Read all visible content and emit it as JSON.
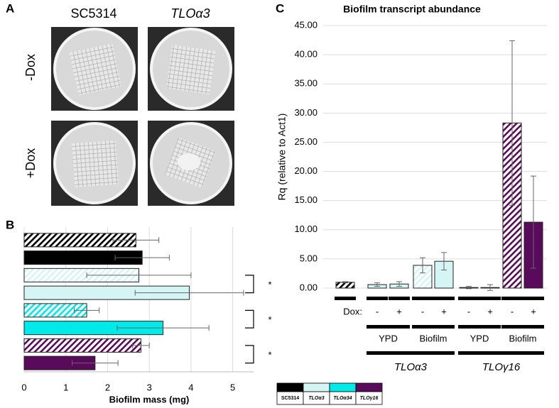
{
  "panel_labels": [
    "A",
    "B",
    "C"
  ],
  "panel_a": {
    "columns": [
      "SC5314",
      "TLOα3"
    ],
    "rows": [
      "-Dox",
      "+Dox"
    ]
  },
  "chart_data": [
    {
      "type": "bar",
      "orientation": "horizontal",
      "xlabel": "Biofilm mass (mg)",
      "values": [
        2.68,
        2.83,
        2.75,
        3.96,
        1.5,
        3.33,
        2.8,
        1.7
      ],
      "errors": [
        0.55,
        0.65,
        1.25,
        1.3,
        0.3,
        1.1,
        0.2,
        0.55
      ],
      "colors": [
        "#000000",
        "#000000",
        "#d5f5f5",
        "#d5f5f5",
        "#00eaea",
        "#00eaea",
        "#5a0a5a",
        "#5a0a5a"
      ],
      "hatched": [
        true,
        false,
        true,
        false,
        true,
        false,
        true,
        false
      ],
      "xlim": [
        0,
        5.5
      ],
      "xticks": [
        0,
        1,
        2,
        3,
        4,
        5
      ],
      "grid": true,
      "annotations": [
        "*",
        "*",
        "*"
      ]
    },
    {
      "type": "bar",
      "orientation": "vertical",
      "title": "Biofilm transcript abundance",
      "ylabel": "Rq (relative to Act1)",
      "category_label": "Dox:",
      "categories": [
        null,
        "-",
        "+",
        "-",
        "+",
        "-",
        "+",
        "-",
        "+"
      ],
      "values": [
        1.0,
        0.6,
        0.7,
        3.9,
        4.6,
        0.1,
        0.1,
        28.3,
        11.3
      ],
      "errors": [
        0.1,
        0.3,
        0.4,
        1.3,
        1.5,
        0.2,
        0.5,
        14.1,
        7.9
      ],
      "colors": [
        "#000000",
        "#d5f5f5",
        "#d5f5f5",
        "#d5f5f5",
        "#d5f5f5",
        "#5a0a5a",
        "#5a0a5a",
        "#5a0a5a",
        "#5a0a5a"
      ],
      "hatched": [
        true,
        false,
        false,
        true,
        false,
        true,
        false,
        true,
        false
      ],
      "groups": [
        "YPD",
        "Biofilm",
        "YPD",
        "Biofilm"
      ],
      "strains": [
        "TLOα3",
        "TLOγ16"
      ],
      "ylim": [
        0,
        45
      ],
      "yticks": [
        {
          "value": 0,
          "label": "0.00"
        },
        {
          "value": 5,
          "label": "5.00"
        },
        {
          "value": 10,
          "label": "10.00"
        },
        {
          "value": 15,
          "label": "15.00"
        },
        {
          "value": 20,
          "label": "20.00"
        },
        {
          "value": 25,
          "label": "25.00"
        },
        {
          "value": 30,
          "label": "30.00"
        },
        {
          "value": 35,
          "label": "35.00"
        },
        {
          "value": 40,
          "label": "40.00"
        },
        {
          "value": 45,
          "label": "45.00"
        }
      ],
      "grid": true
    }
  ],
  "legend": [
    {
      "name": "SC5314",
      "color": "#000000"
    },
    {
      "name": "TLOα3",
      "color": "#d5f5f5"
    },
    {
      "name": "TLOα34",
      "color": "#00eaea"
    },
    {
      "name": "TLOγ16",
      "color": "#5a0a5a"
    }
  ]
}
